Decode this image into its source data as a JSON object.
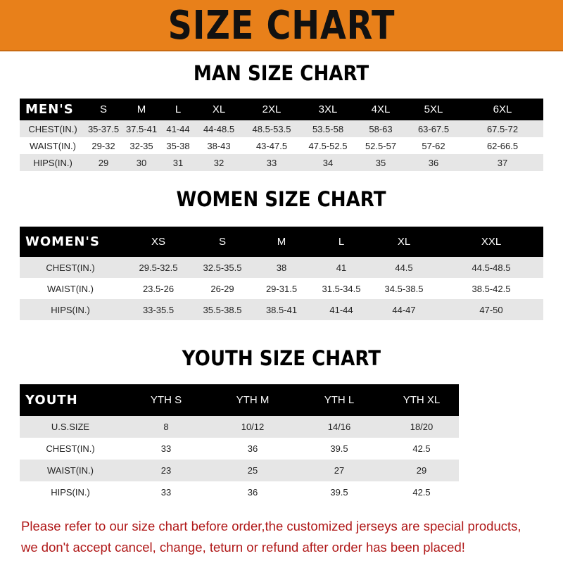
{
  "banner": "SIZE CHART",
  "men": {
    "title": "MAN SIZE CHART",
    "header": [
      "MEN'S",
      "S",
      "M",
      "L",
      "XL",
      "2XL",
      "3XL",
      "4XL",
      "5XL",
      "6XL"
    ],
    "rows": [
      [
        "CHEST(IN.)",
        "35-37.5",
        "37.5-41",
        "41-44",
        "44-48.5",
        "48.5-53.5",
        "53.5-58",
        "58-63",
        "63-67.5",
        "67.5-72"
      ],
      [
        "WAIST(IN.)",
        "29-32",
        "32-35",
        "35-38",
        "38-43",
        "43-47.5",
        "47.5-52.5",
        "52.5-57",
        "57-62",
        "62-66.5"
      ],
      [
        "HIPS(IN.)",
        "29",
        "30",
        "31",
        "32",
        "33",
        "34",
        "35",
        "36",
        "37"
      ]
    ]
  },
  "women": {
    "title": "WOMEN SIZE CHART",
    "header": [
      "WOMEN'S",
      "XS",
      "S",
      "M",
      "L",
      "XL",
      "XXL"
    ],
    "rows": [
      [
        "CHEST(IN.)",
        "29.5-32.5",
        "32.5-35.5",
        "38",
        "41",
        "44.5",
        "44.5-48.5"
      ],
      [
        "WAIST(IN.)",
        "23.5-26",
        "26-29",
        "29-31.5",
        "31.5-34.5",
        "34.5-38.5",
        "38.5-42.5"
      ],
      [
        "HIPS(IN.)",
        "33-35.5",
        "35.5-38.5",
        "38.5-41",
        "41-44",
        "44-47",
        "47-50"
      ]
    ]
  },
  "youth": {
    "title": "YOUTH SIZE CHART",
    "header": [
      "YOUTH",
      "YTH S",
      "YTH M",
      "YTH L",
      "YTH XL"
    ],
    "rows": [
      [
        "U.S.SIZE",
        "8",
        "10/12",
        "14/16",
        "18/20"
      ],
      [
        "CHEST(IN.)",
        "33",
        "36",
        "39.5",
        "42.5"
      ],
      [
        "WAIST(IN.)",
        "23",
        "25",
        "27",
        "29"
      ],
      [
        "HIPS(IN.)",
        "33",
        "36",
        "39.5",
        "42.5"
      ]
    ]
  },
  "note": [
    "Please refer to our size chart before order,the customized jerseys are special products,",
    "we don't accept cancel, change, teturn or refund after order has been placed!"
  ],
  "colors": {
    "banner": "#e8801a",
    "header": "#000000",
    "stripe": "#e6e6e6",
    "note": "#b01818"
  }
}
